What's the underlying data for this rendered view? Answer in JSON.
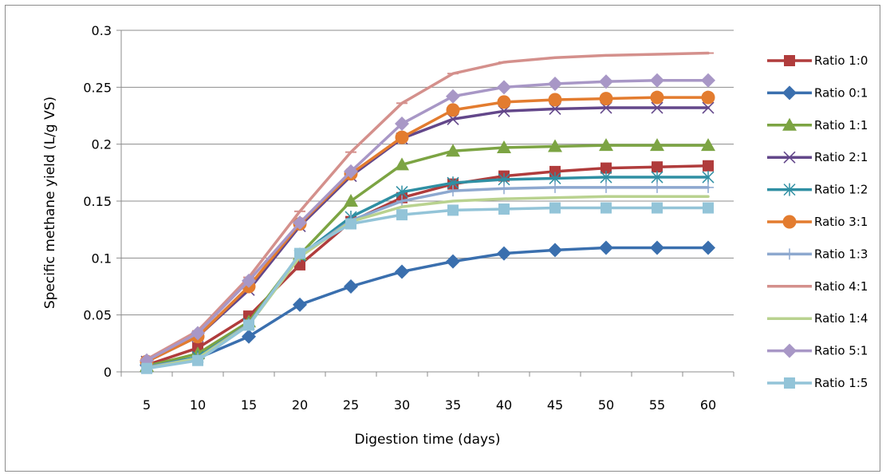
{
  "chart_data": {
    "type": "line",
    "xlabel": "Digestion time (days)",
    "ylabel": "Specific methane yield (L/g VS)",
    "x": [
      5,
      10,
      15,
      20,
      25,
      30,
      35,
      40,
      45,
      50,
      55,
      60
    ],
    "ylim": [
      0,
      0.3
    ],
    "yticks": [
      "0",
      "0.05",
      "0.1",
      "0.15",
      "0.2",
      "0.25",
      "0.3"
    ],
    "grid": "horizontal",
    "legend_position": "right",
    "series": [
      {
        "name": "Ratio 1:0",
        "color": "#b03c3c",
        "marker": "square",
        "values": [
          0.006,
          0.021,
          0.049,
          0.094,
          0.132,
          0.153,
          0.165,
          0.172,
          0.176,
          0.179,
          0.18,
          0.181
        ]
      },
      {
        "name": "Ratio 0:1",
        "color": "#3a6fae",
        "marker": "diamond",
        "values": [
          0.006,
          0.012,
          0.031,
          0.059,
          0.075,
          0.088,
          0.097,
          0.104,
          0.107,
          0.109,
          0.109,
          0.109
        ]
      },
      {
        "name": "Ratio 1:1",
        "color": "#7ca443",
        "marker": "triangle",
        "values": [
          0.005,
          0.016,
          0.044,
          0.103,
          0.15,
          0.182,
          0.194,
          0.197,
          0.198,
          0.199,
          0.199,
          0.199
        ]
      },
      {
        "name": "Ratio 2:1",
        "color": "#63478a",
        "marker": "x",
        "values": [
          0.009,
          0.031,
          0.072,
          0.128,
          0.172,
          0.205,
          0.222,
          0.229,
          0.231,
          0.232,
          0.232,
          0.232
        ]
      },
      {
        "name": "Ratio 1:2",
        "color": "#2f8fa3",
        "marker": "star",
        "values": [
          0.004,
          0.013,
          0.042,
          0.102,
          0.136,
          0.158,
          0.166,
          0.169,
          0.17,
          0.171,
          0.171,
          0.171
        ]
      },
      {
        "name": "Ratio 3:1",
        "color": "#e37c2f",
        "marker": "circle",
        "values": [
          0.009,
          0.031,
          0.075,
          0.13,
          0.174,
          0.206,
          0.23,
          0.237,
          0.239,
          0.24,
          0.241,
          0.241
        ]
      },
      {
        "name": "Ratio 1:3",
        "color": "#8da8cf",
        "marker": "plus",
        "values": [
          0.004,
          0.012,
          0.042,
          0.102,
          0.133,
          0.15,
          0.159,
          0.161,
          0.162,
          0.162,
          0.162,
          0.162
        ]
      },
      {
        "name": "Ratio 4:1",
        "color": "#d4908c",
        "marker": "dash",
        "values": [
          0.011,
          0.036,
          0.083,
          0.141,
          0.193,
          0.236,
          0.262,
          0.272,
          0.276,
          0.278,
          0.279,
          0.28
        ]
      },
      {
        "name": "Ratio 1:4",
        "color": "#b9d28f",
        "marker": "none",
        "values": [
          0.003,
          0.012,
          0.041,
          0.101,
          0.132,
          0.145,
          0.15,
          0.152,
          0.153,
          0.154,
          0.154,
          0.154
        ]
      },
      {
        "name": "Ratio 5:1",
        "color": "#a897c6",
        "marker": "diamond",
        "values": [
          0.01,
          0.034,
          0.08,
          0.131,
          0.176,
          0.218,
          0.242,
          0.25,
          0.253,
          0.255,
          0.256,
          0.256
        ]
      },
      {
        "name": "Ratio 1:5",
        "color": "#93c4d8",
        "marker": "square",
        "values": [
          0.003,
          0.01,
          0.041,
          0.104,
          0.13,
          0.138,
          0.142,
          0.143,
          0.144,
          0.144,
          0.144,
          0.144
        ]
      }
    ]
  }
}
